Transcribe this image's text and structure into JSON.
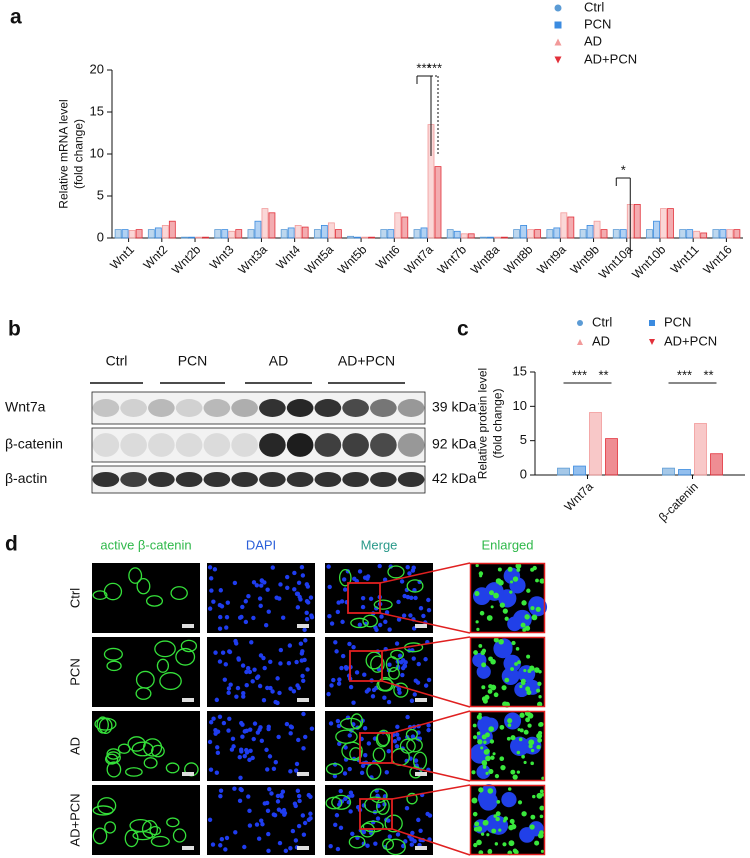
{
  "chart_data": [
    {
      "type": "bar",
      "panel_label": "a",
      "y_label": [
        "Relative mRNA level",
        "(fold change)"
      ],
      "categories": [
        "Wnt1",
        "Wnt2",
        "Wnt2b",
        "Wnt3",
        "Wnt3a",
        "Wnt4",
        "Wnt5a",
        "Wnt5b",
        "Wnt6",
        "Wnt7a",
        "Wnt7b",
        "Wnt8a",
        "Wnt8b",
        "Wnt9a",
        "Wnt9b",
        "Wnt10a",
        "Wnt10b",
        "Wnt11",
        "Wnt16"
      ],
      "series": [
        {
          "name": "Ctrl",
          "color": "#5b9bd5",
          "values": [
            1,
            1,
            0.1,
            1,
            1,
            1,
            1,
            0.2,
            1,
            1,
            1,
            0.1,
            1,
            1,
            1,
            1,
            1,
            1,
            1
          ]
        },
        {
          "name": "PCN",
          "color": "#3b8be0",
          "values": [
            1,
            1.2,
            0.1,
            1,
            2,
            1.2,
            1.5,
            0.1,
            1,
            1.2,
            0.8,
            0.1,
            1.5,
            1.2,
            1.5,
            1,
            2,
            1,
            1
          ]
        },
        {
          "name": "AD",
          "color": "#f29a9a",
          "values": [
            0.9,
            1.5,
            0.1,
            0.8,
            3.5,
            1.5,
            1.8,
            0.1,
            3,
            13.5,
            0.5,
            0.1,
            1,
            3,
            2,
            4,
            3.5,
            0.8,
            1
          ]
        },
        {
          "name": "AD+PCN",
          "color": "#e2303a",
          "values": [
            1,
            2,
            0.1,
            1,
            3,
            1.3,
            1,
            0.1,
            2.5,
            8.5,
            0.5,
            0.1,
            1,
            2.5,
            1,
            4,
            3.5,
            0.6,
            1
          ]
        }
      ],
      "ylim": [
        0,
        20
      ],
      "yticks": [
        0,
        5,
        10,
        15,
        20
      ],
      "legend": "top-right",
      "annotations": [
        "***",
        "***",
        "*"
      ]
    },
    {
      "type": "bar",
      "panel_label": "c",
      "y_label": [
        "Relative protein level",
        "(fold change)"
      ],
      "categories": [
        "Wnt7a",
        "β-catenin"
      ],
      "series": [
        {
          "name": "Ctrl",
          "color": "#5b9bd5",
          "values": [
            1,
            1
          ]
        },
        {
          "name": "PCN",
          "color": "#3b8be0",
          "values": [
            1.3,
            0.8
          ]
        },
        {
          "name": "AD",
          "color": "#f29a9a",
          "values": [
            9.1,
            7.5
          ]
        },
        {
          "name": "AD+PCN",
          "color": "#e2303a",
          "values": [
            5.3,
            3.1
          ]
        }
      ],
      "ylim": [
        0,
        15
      ],
      "yticks": [
        0,
        5,
        10,
        15
      ],
      "legend": "top-right",
      "annotations": [
        "***",
        "**",
        "***",
        "**"
      ]
    }
  ],
  "blot": {
    "panel_label": "b",
    "groups": [
      "Ctrl",
      "PCN",
      "AD",
      "AD+PCN"
    ],
    "rows": [
      {
        "label": "Wnt7a",
        "size": "39 kDa"
      },
      {
        "label": "β-catenin",
        "size": "92 kDa"
      },
      {
        "label": "β-actin",
        "size": "42 kDa"
      }
    ]
  },
  "images": {
    "panel_label": "d",
    "columns": [
      "active β-catenin",
      "DAPI",
      "Merge",
      "Enlarged"
    ],
    "rows": [
      "Ctrl",
      "PCN",
      "AD",
      "AD+PCN"
    ]
  }
}
